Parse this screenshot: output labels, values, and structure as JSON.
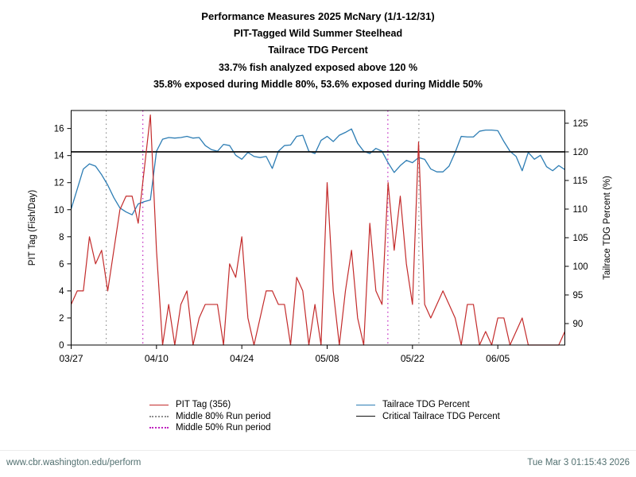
{
  "title_lines": [
    "Performance Measures 2025 McNary (1/1-12/31)",
    "PIT-Tagged Wild Summer Steelhead",
    "Tailrace TDG Percent",
    "33.7% fish analyzed exposed above 120 %",
    "35.8% exposed during Middle 80%, 53.6% exposed during Middle 50%"
  ],
  "colors": {
    "pit_tag": "#c32b2b",
    "tdg": "#2d7db4",
    "critical": "#111111",
    "middle80": "#8f8f8f",
    "middle50": "#bf24bf",
    "footer_text": "#527070",
    "axis": "#000000"
  },
  "legend": {
    "left_items": [
      {
        "label": "PIT Tag (356)",
        "color": "#c32b2b",
        "style": "solid"
      },
      {
        "label": "Middle 80% Run period",
        "color": "#8f8f8f",
        "style": "dotted"
      },
      {
        "label": "Middle 50% Run period",
        "color": "#bf24bf",
        "style": "dotted"
      }
    ],
    "right_items": [
      {
        "label": "Tailrace TDG Percent",
        "color": "#2d7db4",
        "style": "solid"
      },
      {
        "label": "Critical Tailrace TDG Percent",
        "color": "#111111",
        "style": "solid"
      }
    ]
  },
  "footer": {
    "url": "www.cbr.washington.edu/perform",
    "timestamp": "Tue Mar  3 01:15:43 2026"
  },
  "chart_data": {
    "type": "line",
    "title": "Performance Measures 2025 McNary (1/1-12/31)",
    "pit_tag_total": 356,
    "dates": [
      "03/27",
      "03/28",
      "03/29",
      "03/30",
      "03/31",
      "04/01",
      "04/02",
      "04/03",
      "04/04",
      "04/05",
      "04/06",
      "04/07",
      "04/08",
      "04/09",
      "04/10",
      "04/11",
      "04/12",
      "04/13",
      "04/14",
      "04/15",
      "04/16",
      "04/17",
      "04/18",
      "04/19",
      "04/20",
      "04/21",
      "04/22",
      "04/23",
      "04/24",
      "04/25",
      "04/26",
      "04/27",
      "04/28",
      "04/29",
      "04/30",
      "05/01",
      "05/02",
      "05/03",
      "05/04",
      "05/05",
      "05/06",
      "05/07",
      "05/08",
      "05/09",
      "05/10",
      "05/11",
      "05/12",
      "05/13",
      "05/14",
      "05/15",
      "05/16",
      "05/17",
      "05/18",
      "05/19",
      "05/20",
      "05/21",
      "05/22",
      "05/23",
      "05/24",
      "05/25",
      "05/26",
      "05/27",
      "05/28",
      "05/29",
      "05/30",
      "05/31",
      "06/01",
      "06/02",
      "06/03",
      "06/04",
      "06/05",
      "06/06",
      "06/07",
      "06/08",
      "06/09",
      "06/10",
      "06/11",
      "06/12",
      "06/13",
      "06/14",
      "06/15",
      "06/16"
    ],
    "x_ticks": [
      {
        "label": "03/27",
        "day": 0
      },
      {
        "label": "04/10",
        "day": 14
      },
      {
        "label": "04/24",
        "day": 28
      },
      {
        "label": "05/08",
        "day": 42
      },
      {
        "label": "05/22",
        "day": 56
      },
      {
        "label": "06/05",
        "day": 70
      }
    ],
    "left_axis": {
      "label": "PIT Tag (Fish/Day)",
      "ticks": [
        0,
        2,
        4,
        6,
        8,
        10,
        12,
        14,
        16
      ],
      "range": [
        0,
        17.33
      ]
    },
    "right_axis": {
      "label": "Tailrace TDG Percent (%)",
      "ticks": [
        90,
        95,
        100,
        105,
        110,
        115,
        120,
        125
      ],
      "range": [
        86.25,
        127.22
      ]
    },
    "series": [
      {
        "name": "PIT Tag (356)",
        "axis": "left",
        "color": "#c32b2b",
        "width": 1.2,
        "values": [
          3,
          4,
          4,
          8,
          6,
          7,
          4,
          7,
          10,
          11,
          11,
          9,
          13,
          17,
          7,
          0,
          3,
          0,
          3,
          4,
          0,
          2,
          3,
          3,
          3,
          0,
          6,
          5,
          8,
          2,
          0,
          2,
          4,
          4,
          3,
          3,
          0,
          5,
          4,
          0,
          3,
          0,
          12,
          4,
          0,
          4,
          7,
          2,
          0,
          9,
          4,
          3,
          12,
          7,
          11,
          6,
          3,
          15,
          3,
          2,
          3,
          4,
          3,
          2,
          0,
          3,
          3,
          0,
          1,
          0,
          2,
          2,
          0,
          1,
          2,
          0,
          0,
          0,
          0,
          0,
          0,
          1
        ]
      },
      {
        "name": "Tailrace TDG Percent",
        "axis": "right",
        "color": "#2d7db4",
        "width": 1.3,
        "values": [
          110,
          113.5,
          117,
          117.9,
          117.5,
          116,
          114.2,
          112,
          110.2,
          109.5,
          109,
          110.9,
          111.3,
          111.6,
          120.1,
          122.2,
          122.5,
          122.4,
          122.5,
          122.7,
          122.4,
          122.5,
          121.1,
          120.4,
          120.1,
          121.3,
          121.1,
          119.4,
          118.7,
          119.9,
          119.2,
          119,
          119.2,
          117.1,
          120.1,
          121.1,
          121.2,
          122.7,
          122.9,
          120.1,
          119.7,
          122,
          122.7,
          121.8,
          122.9,
          123.4,
          124,
          121.5,
          120.1,
          119.7,
          120.6,
          120.1,
          118.1,
          116.4,
          117.6,
          118.5,
          118.1,
          119,
          118.7,
          117,
          116.5,
          116.5,
          117.5,
          119.9,
          122.7,
          122.6,
          122.6,
          123.6,
          123.8,
          123.8,
          123.7,
          121.8,
          120.1,
          119.2,
          116.7,
          119.9,
          118.7,
          119.4,
          117.4,
          116.7,
          117.6,
          116.9
        ]
      }
    ],
    "vlines": [
      {
        "name": "Middle 80% Run period",
        "color": "#8f8f8f",
        "style": "dotted",
        "days": [
          5.75,
          57.05
        ],
        "start_date": "04/02",
        "end_date": "05/23"
      },
      {
        "name": "Middle 50% Run period",
        "color": "#bf24bf",
        "style": "dotted",
        "days": [
          11.76,
          51.96
        ],
        "start_date": "04/08",
        "end_date": "05/18"
      }
    ],
    "hlines": [
      {
        "name": "Critical Tailrace TDG Percent",
        "color": "#111111",
        "axis": "right",
        "value": 120
      }
    ],
    "legend_position": "bottom",
    "grid": false
  }
}
